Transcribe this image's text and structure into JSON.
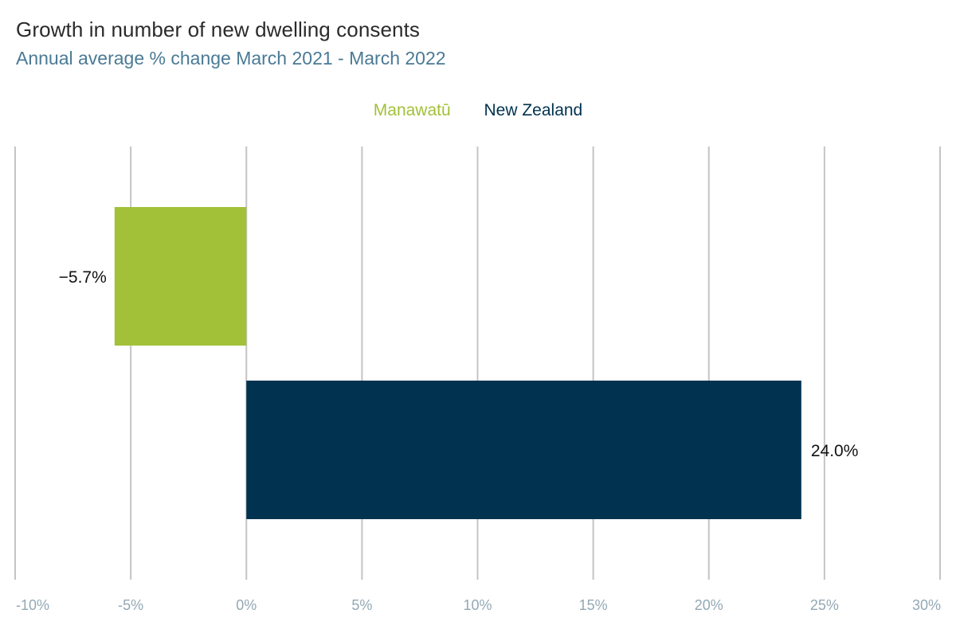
{
  "title": "Growth in number of new dwelling consents",
  "subtitle": "Annual average % change March 2021 - March 2022",
  "colors": {
    "title": "#2b2b2b",
    "subtitle": "#4a7a95",
    "grid": "#c4c4c4",
    "tick": "#93a8b5"
  },
  "chart_data": {
    "type": "bar",
    "orientation": "horizontal",
    "series": [
      {
        "name": "Manawatū",
        "value": -5.7,
        "label": "−5.7%",
        "color": "#a2c138"
      },
      {
        "name": "New Zealand",
        "value": 24.0,
        "label": "24.0%",
        "color": "#01324f"
      }
    ],
    "xlim": [
      -10,
      30
    ],
    "xticks": [
      -10,
      -5,
      0,
      5,
      10,
      15,
      20,
      25,
      30
    ],
    "xtick_labels": [
      "-10%",
      "-5%",
      "0%",
      "5%",
      "10%",
      "15%",
      "20%",
      "25%",
      "30%"
    ],
    "grid": true,
    "legend_position": "top-center"
  }
}
